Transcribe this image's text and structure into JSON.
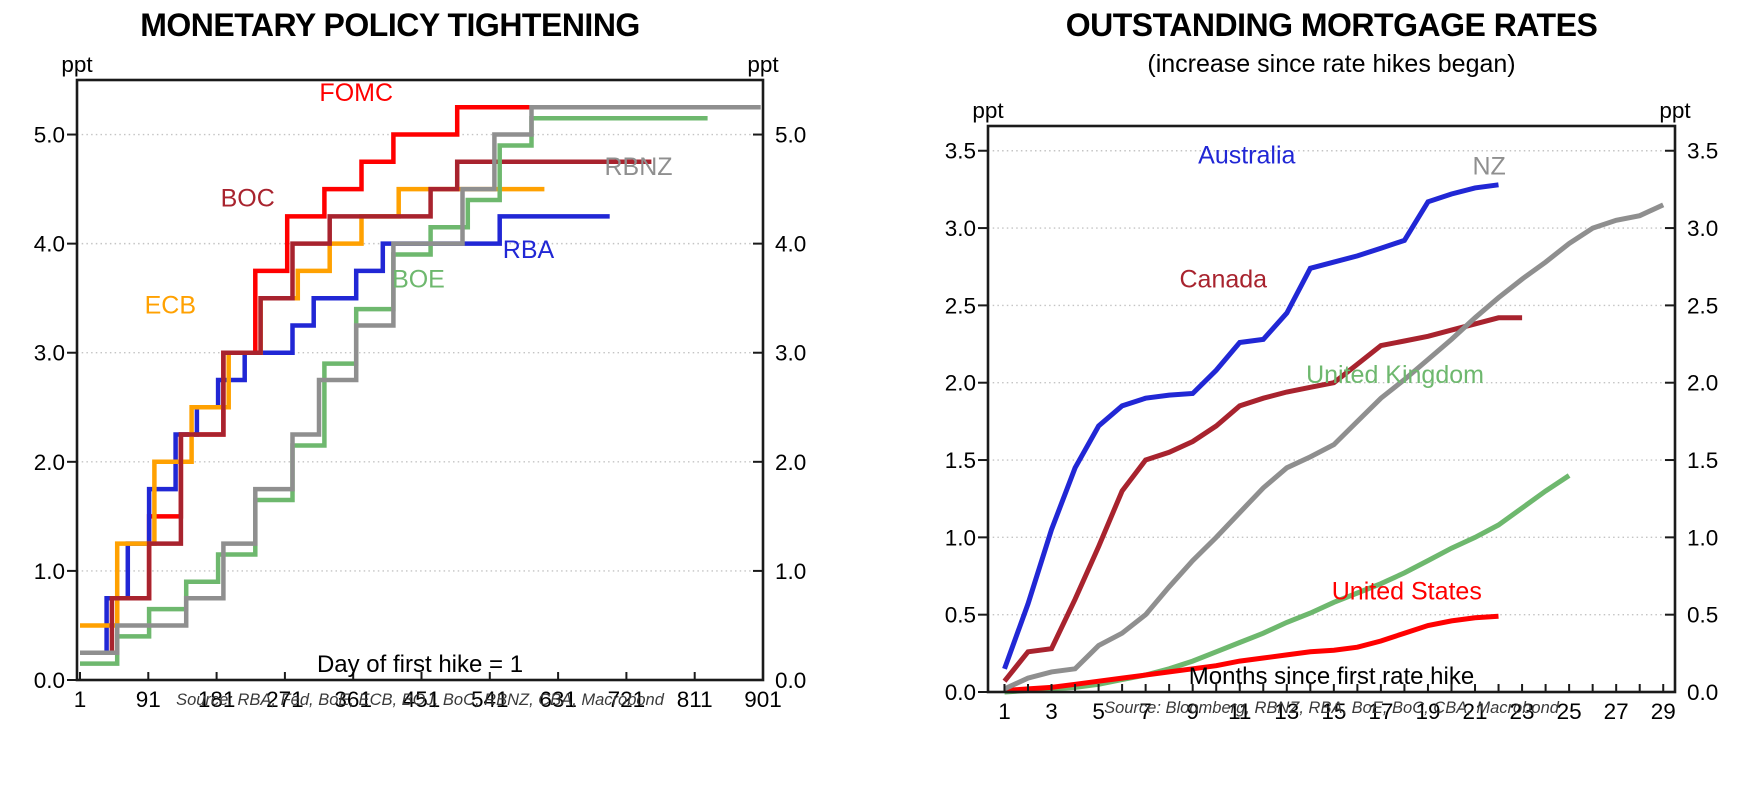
{
  "chart_data": [
    {
      "type": "line",
      "subtype": "step",
      "title": "MONETARY POLICY TIGHTENING",
      "subtitle": "",
      "unit": "ppt",
      "xlabel": "Day of first hike = 1",
      "source": "Source: RBA, Fed, BoE, ECB, BOJ, BoC, RBNZ, CBA, Macrobond",
      "grid": "dotted horizontal",
      "legend_position": "inline-labels",
      "x_domain": [
        -2.95,
        901
      ],
      "y_domain": [
        0,
        5.5
      ],
      "x_ticks": [
        {
          "v": 1,
          "label": "1"
        },
        {
          "v": 91,
          "label": "91"
        },
        {
          "v": 181,
          "label": "181"
        },
        {
          "v": 271,
          "label": "271"
        },
        {
          "v": 361,
          "label": "361"
        },
        {
          "v": 451,
          "label": "451"
        },
        {
          "v": 541,
          "label": "541"
        },
        {
          "v": 631,
          "label": "631"
        },
        {
          "v": 721,
          "label": "721"
        },
        {
          "v": 811,
          "label": "811"
        },
        {
          "v": 901,
          "label": "901"
        }
      ],
      "x_minor": [],
      "y_ticks": [
        {
          "v": 0,
          "label": "0.0"
        },
        {
          "v": 1,
          "label": "1.0"
        },
        {
          "v": 2,
          "label": "2.0"
        },
        {
          "v": 3,
          "label": "3.0"
        },
        {
          "v": 4,
          "label": "4.0"
        },
        {
          "v": 5,
          "label": "5.0"
        }
      ],
      "series": [
        {
          "name": "FOMC",
          "color": "#FF0000",
          "type": "step",
          "points": [
            [
              1,
              0.25
            ],
            [
              50,
              0.75
            ],
            [
              92,
              1.5
            ],
            [
              134,
              2.25
            ],
            [
              190,
              3.0
            ],
            [
              232,
              3.75
            ],
            [
              274,
              4.25
            ],
            [
              323,
              4.5
            ],
            [
              372,
              4.75
            ],
            [
              414,
              5.0
            ],
            [
              498,
              5.25
            ],
            [
              747,
              5.25
            ]
          ]
        },
        {
          "name": "RBA",
          "color": "#2127D5",
          "type": "step",
          "points": [
            [
              1,
              0.25
            ],
            [
              36,
              0.75
            ],
            [
              64,
              1.25
            ],
            [
              92,
              1.75
            ],
            [
              127,
              2.25
            ],
            [
              155,
              2.5
            ],
            [
              183,
              2.75
            ],
            [
              218,
              3.0
            ],
            [
              281,
              3.25
            ],
            [
              309,
              3.5
            ],
            [
              365,
              3.75
            ],
            [
              400,
              4.0
            ],
            [
              554,
              4.25
            ],
            [
              699,
              4.25
            ]
          ]
        },
        {
          "name": "ECB",
          "color": "#FFA101",
          "type": "step",
          "points": [
            [
              1,
              0.5
            ],
            [
              50,
              1.25
            ],
            [
              99,
              2.0
            ],
            [
              148,
              2.5
            ],
            [
              197,
              3.0
            ],
            [
              239,
              3.5
            ],
            [
              288,
              3.75
            ],
            [
              330,
              4.0
            ],
            [
              372,
              4.25
            ],
            [
              421,
              4.5
            ],
            [
              613,
              4.5
            ]
          ]
        },
        {
          "name": "BOC",
          "color": "#A8232E",
          "type": "step",
          "points": [
            [
              1,
              0.25
            ],
            [
              43,
              0.75
            ],
            [
              92,
              1.25
            ],
            [
              134,
              2.25
            ],
            [
              190,
              3.0
            ],
            [
              239,
              3.5
            ],
            [
              281,
              4.0
            ],
            [
              330,
              4.25
            ],
            [
              463,
              4.5
            ],
            [
              498,
              4.75
            ],
            [
              754,
              4.75
            ]
          ]
        },
        {
          "name": "BOE",
          "color": "#6EB86E",
          "type": "step",
          "points": [
            [
              1,
              0.15
            ],
            [
              50,
              0.4
            ],
            [
              92,
              0.65
            ],
            [
              141,
              0.9
            ],
            [
              183,
              1.15
            ],
            [
              232,
              1.65
            ],
            [
              281,
              2.15
            ],
            [
              323,
              2.9
            ],
            [
              365,
              3.4
            ],
            [
              414,
              3.9
            ],
            [
              463,
              4.15
            ],
            [
              512,
              4.4
            ],
            [
              554,
              4.9
            ],
            [
              596,
              5.15
            ],
            [
              828,
              5.15
            ]
          ]
        },
        {
          "name": "RBNZ",
          "color": "#8F8F8F",
          "type": "step",
          "points": [
            [
              1,
              0.25
            ],
            [
              50,
              0.5
            ],
            [
              141,
              0.75
            ],
            [
              190,
              1.25
            ],
            [
              232,
              1.75
            ],
            [
              281,
              2.25
            ],
            [
              316,
              2.75
            ],
            [
              365,
              3.25
            ],
            [
              414,
              4.0
            ],
            [
              505,
              4.5
            ],
            [
              547,
              5.0
            ],
            [
              596,
              5.25
            ],
            [
              898,
              5.25
            ]
          ]
        }
      ],
      "annotations": [
        {
          "text": "FOMC",
          "color": "#FF0000",
          "x": 365,
          "y": 5.37
        },
        {
          "text": "BOC",
          "color": "#A8232E",
          "x": 222,
          "y": 4.4
        },
        {
          "text": "ECB",
          "color": "#FFA101",
          "x": 120,
          "y": 3.42
        },
        {
          "text": "RBA",
          "color": "#2127D5",
          "x": 592,
          "y": 3.93
        },
        {
          "text": "BOE",
          "color": "#6EB86E",
          "x": 447,
          "y": 3.66
        },
        {
          "text": "RBNZ",
          "color": "#8F8F8F",
          "x": 737,
          "y": 4.69
        }
      ]
    },
    {
      "type": "line",
      "subtype": "smooth",
      "title": "OUTSTANDING MORTGAGE RATES",
      "subtitle": "(increase since rate hikes began)",
      "unit": "ppt",
      "xlabel": "Months since first rate hike",
      "source": "Source: Bloomberg, RBNZ, RBA, BoE, BoC, CBA, Macrobond",
      "grid": "dotted horizontal",
      "legend_position": "inline-labels",
      "x_domain": [
        0.3,
        29.5
      ],
      "y_domain": [
        0,
        3.66
      ],
      "x_ticks": [
        {
          "v": 1,
          "label": "1"
        },
        {
          "v": 3,
          "label": "3"
        },
        {
          "v": 5,
          "label": "5"
        },
        {
          "v": 7,
          "label": "7"
        },
        {
          "v": 9,
          "label": "9"
        },
        {
          "v": 11,
          "label": "11"
        },
        {
          "v": 13,
          "label": "13"
        },
        {
          "v": 15,
          "label": "15"
        },
        {
          "v": 17,
          "label": "17"
        },
        {
          "v": 19,
          "label": "19"
        },
        {
          "v": 21,
          "label": "21"
        },
        {
          "v": 23,
          "label": "23"
        },
        {
          "v": 25,
          "label": "25"
        },
        {
          "v": 27,
          "label": "27"
        },
        {
          "v": 29,
          "label": "29"
        }
      ],
      "x_minor": [
        2,
        4,
        6,
        8,
        10,
        12,
        14,
        16,
        18,
        20,
        22,
        24,
        26,
        28
      ],
      "y_ticks": [
        {
          "v": 0,
          "label": "0.0"
        },
        {
          "v": 0.5,
          "label": "0.5"
        },
        {
          "v": 1,
          "label": "1.0"
        },
        {
          "v": 1.5,
          "label": "1.5"
        },
        {
          "v": 2,
          "label": "2.0"
        },
        {
          "v": 2.5,
          "label": "2.5"
        },
        {
          "v": 3,
          "label": "3.0"
        },
        {
          "v": 3.5,
          "label": "3.5"
        }
      ],
      "series": [
        {
          "name": "United Kingdom",
          "color": "#6EB86E",
          "type": "line",
          "x_start": 1,
          "values": [
            0.0,
            0.01,
            0.02,
            0.03,
            0.05,
            0.08,
            0.11,
            0.15,
            0.2,
            0.26,
            0.32,
            0.38,
            0.45,
            0.51,
            0.58,
            0.64,
            0.7,
            0.77,
            0.85,
            0.93,
            1.0,
            1.08,
            1.19,
            1.3,
            1.4
          ]
        },
        {
          "name": "United States",
          "color": "#FF0000",
          "type": "line",
          "x_start": 1,
          "values": [
            0.01,
            0.02,
            0.03,
            0.05,
            0.07,
            0.09,
            0.11,
            0.13,
            0.15,
            0.17,
            0.2,
            0.22,
            0.24,
            0.26,
            0.27,
            0.29,
            0.33,
            0.38,
            0.43,
            0.46,
            0.48,
            0.49
          ]
        },
        {
          "name": "Canada",
          "color": "#A8232E",
          "type": "line",
          "x_start": 1,
          "values": [
            0.07,
            0.26,
            0.28,
            0.6,
            0.94,
            1.3,
            1.5,
            1.55,
            1.62,
            1.72,
            1.85,
            1.9,
            1.94,
            1.97,
            2.0,
            2.12,
            2.24,
            2.27,
            2.3,
            2.34,
            2.38,
            2.42,
            2.42
          ]
        },
        {
          "name": "NZ",
          "color": "#8F8F8F",
          "type": "line",
          "x_start": 1,
          "values": [
            0.02,
            0.09,
            0.13,
            0.15,
            0.3,
            0.38,
            0.5,
            0.68,
            0.85,
            1.0,
            1.16,
            1.32,
            1.45,
            1.52,
            1.6,
            1.75,
            1.9,
            2.02,
            2.15,
            2.28,
            2.42,
            2.55,
            2.67,
            2.78,
            2.9,
            3.0,
            3.05,
            3.08,
            3.15
          ]
        },
        {
          "name": "Australia",
          "color": "#2127D5",
          "type": "line",
          "x_start": 1,
          "values": [
            0.15,
            0.57,
            1.05,
            1.45,
            1.72,
            1.85,
            1.9,
            1.92,
            1.93,
            2.08,
            2.26,
            2.28,
            2.45,
            2.74,
            2.78,
            2.82,
            2.87,
            2.92,
            3.17,
            3.22,
            3.26,
            3.28
          ]
        }
      ],
      "annotations": [
        {
          "text": "Australia",
          "color": "#2127D5",
          "x": 11.3,
          "y": 3.46
        },
        {
          "text": "NZ",
          "color": "#8F8F8F",
          "x": 21.6,
          "y": 3.39
        },
        {
          "text": "Canada",
          "color": "#A8232E",
          "x": 10.3,
          "y": 2.66
        },
        {
          "text": "United Kingdom",
          "color": "#6EB86E",
          "x": 17.6,
          "y": 2.04
        },
        {
          "text": "United States",
          "color": "#FF0000",
          "x": 18.1,
          "y": 0.64
        }
      ]
    }
  ]
}
